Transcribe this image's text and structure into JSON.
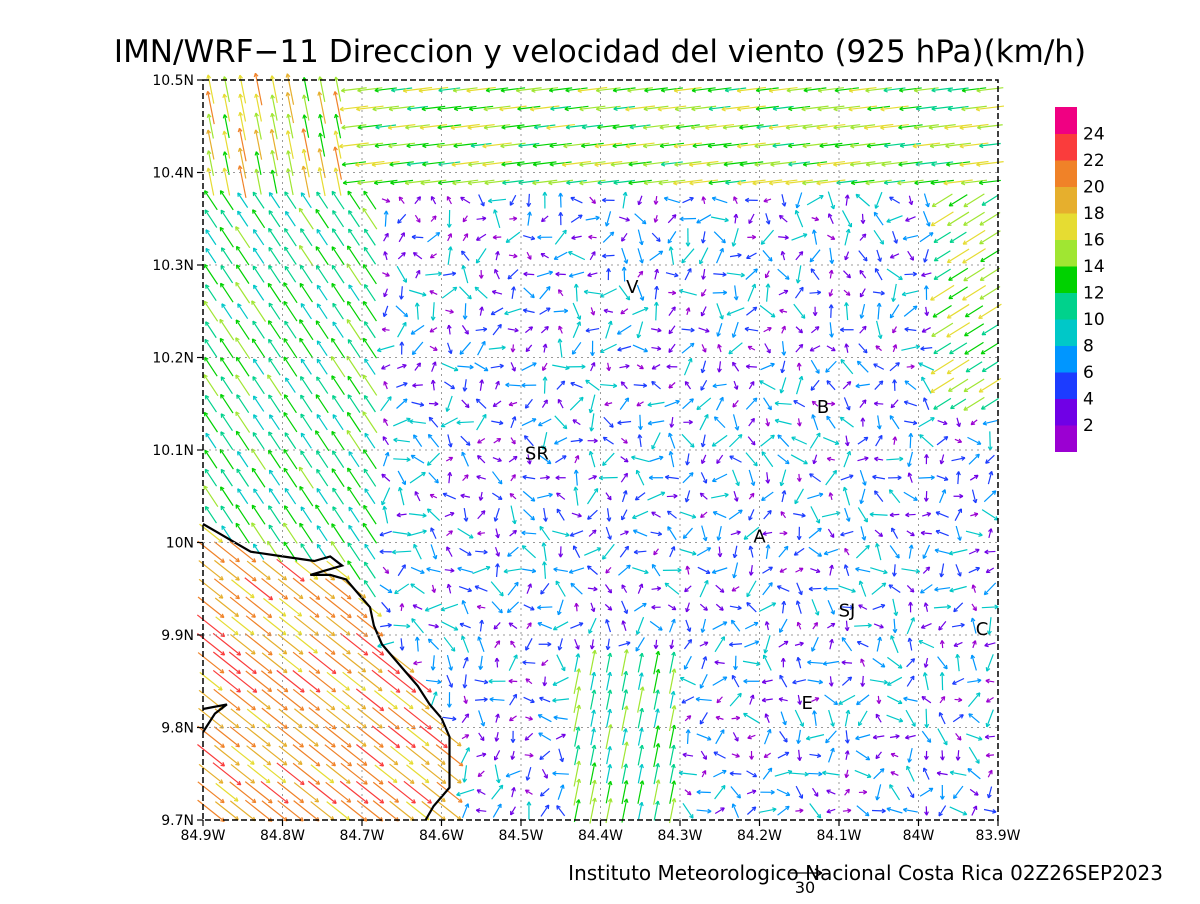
{
  "title": "IMN/WRF−11 Direccion y velocidad del viento (925 hPa)(km/h)",
  "footer": "Instituto Meteorologico Nacional Costa Rica 02Z26SEP2023",
  "reference_vector_label": "30",
  "chart_data": {
    "type": "vector_field",
    "x_range": [
      -84.9,
      -83.9
    ],
    "y_range": [
      9.7,
      10.5
    ],
    "x_ticks": [
      {
        "value": -84.9,
        "label": "84.9W"
      },
      {
        "value": -84.8,
        "label": "84.8W"
      },
      {
        "value": -84.7,
        "label": "84.7W"
      },
      {
        "value": -84.6,
        "label": "84.6W"
      },
      {
        "value": -84.5,
        "label": "84.5W"
      },
      {
        "value": -84.4,
        "label": "84.4W"
      },
      {
        "value": -84.3,
        "label": "84.3W"
      },
      {
        "value": -84.2,
        "label": "84.2W"
      },
      {
        "value": -84.1,
        "label": "84.1W"
      },
      {
        "value": -84.0,
        "label": "84W"
      },
      {
        "value": -83.9,
        "label": "83.9W"
      }
    ],
    "y_ticks": [
      {
        "value": 9.7,
        "label": "9.7N"
      },
      {
        "value": 9.8,
        "label": "9.8N"
      },
      {
        "value": 9.9,
        "label": "9.9N"
      },
      {
        "value": 10.0,
        "label": "10N"
      },
      {
        "value": 10.1,
        "label": "10.1N"
      },
      {
        "value": 10.2,
        "label": "10.2N"
      },
      {
        "value": 10.3,
        "label": "10.3N"
      },
      {
        "value": 10.4,
        "label": "10.4N"
      },
      {
        "value": 10.5,
        "label": "10.5N"
      }
    ],
    "grid": true,
    "colorbar": {
      "position": "right",
      "colors": [
        "#9b00d2",
        "#7000e6",
        "#1c3cff",
        "#0096ff",
        "#00c8c8",
        "#00d28c",
        "#00d200",
        "#a0e632",
        "#e6dc32",
        "#e6af2d",
        "#f08228",
        "#fa3c3c",
        "#f00082"
      ],
      "labels": [
        "2",
        "4",
        "6",
        "8",
        "10",
        "12",
        "14",
        "16",
        "18",
        "20",
        "22",
        "24"
      ]
    },
    "stations": [
      {
        "label": "V",
        "lon": -84.36,
        "lat": 10.27
      },
      {
        "label": "B",
        "lon": -84.12,
        "lat": 10.14
      },
      {
        "label": "SR",
        "lon": -84.48,
        "lat": 10.09
      },
      {
        "label": "A",
        "lon": -84.2,
        "lat": 10.0
      },
      {
        "label": "SJ",
        "lon": -84.09,
        "lat": 9.92
      },
      {
        "label": "C",
        "lon": -83.92,
        "lat": 9.9
      },
      {
        "label": "E",
        "lon": -84.14,
        "lat": 9.82
      }
    ],
    "coastline": [
      [
        -84.9,
        10.02
      ],
      [
        -84.88,
        10.01
      ],
      [
        -84.86,
        10.0
      ],
      [
        -84.84,
        9.99
      ],
      [
        -84.8,
        9.985
      ],
      [
        -84.76,
        9.98
      ],
      [
        -84.74,
        9.985
      ],
      [
        -84.725,
        9.975
      ],
      [
        -84.765,
        9.965
      ],
      [
        -84.74,
        9.965
      ],
      [
        -84.72,
        9.96
      ],
      [
        -84.705,
        9.945
      ],
      [
        -84.69,
        9.93
      ],
      [
        -84.685,
        9.91
      ],
      [
        -84.675,
        9.89
      ],
      [
        -84.66,
        9.875
      ],
      [
        -84.645,
        9.86
      ],
      [
        -84.63,
        9.845
      ],
      [
        -84.615,
        9.825
      ],
      [
        -84.6,
        9.81
      ],
      [
        -84.59,
        9.79
      ],
      [
        -84.59,
        9.77
      ],
      [
        -84.59,
        9.75
      ],
      [
        -84.59,
        9.735
      ],
      [
        -84.61,
        9.715
      ],
      [
        -84.62,
        9.7
      ]
    ],
    "coastline2": [
      [
        -84.9,
        9.795
      ],
      [
        -84.885,
        9.815
      ],
      [
        -84.87,
        9.825
      ],
      [
        -84.9,
        9.82
      ]
    ]
  }
}
